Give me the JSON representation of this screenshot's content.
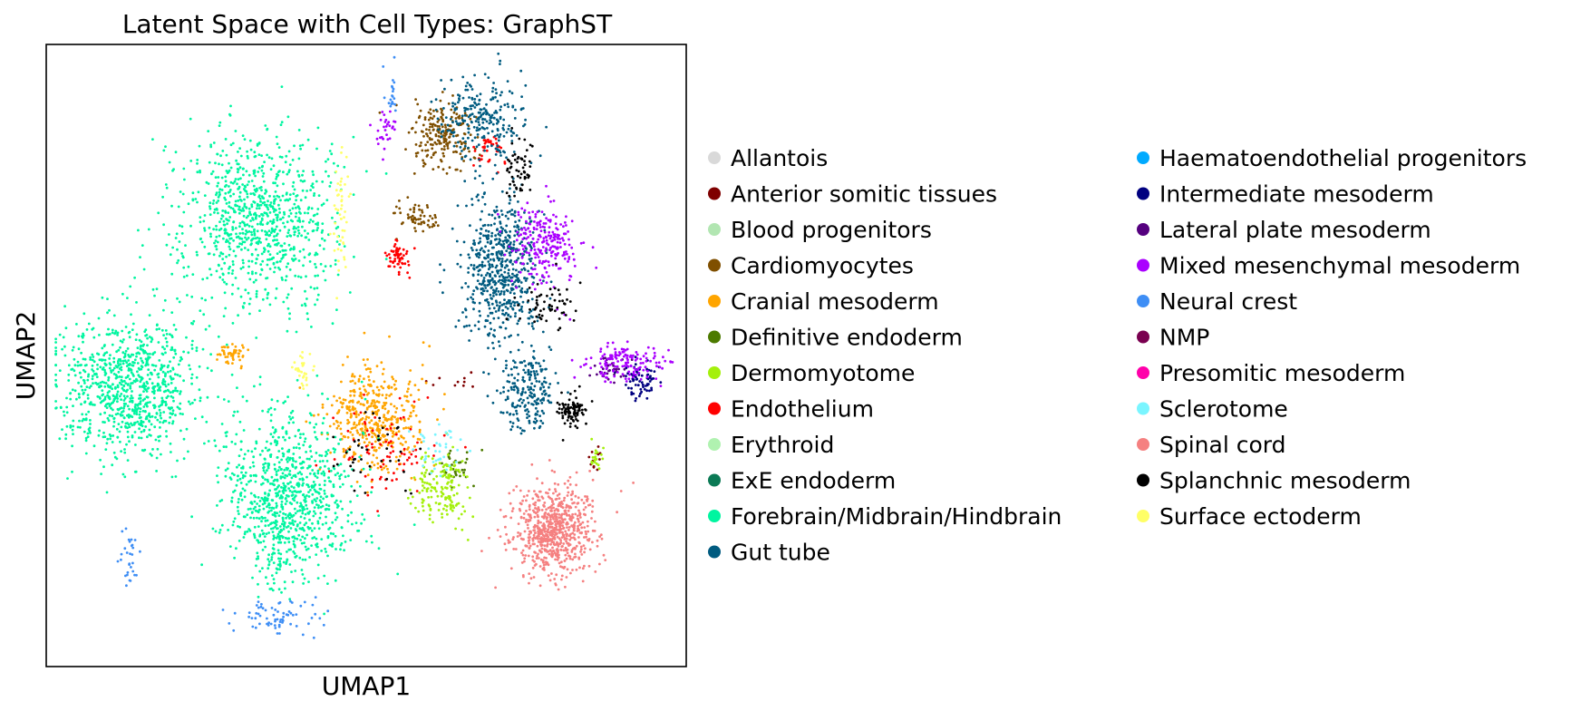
{
  "chart_data": {
    "type": "scatter",
    "title": "Latent Space with Cell Types: GraphST",
    "xlabel": "UMAP1",
    "ylabel": "UMAP2",
    "xlim": [
      0,
      10
    ],
    "ylim": [
      0,
      10
    ],
    "grid": false,
    "axis_ticks": false,
    "legend_position": "right-outside",
    "series": [
      {
        "name": "Allantois",
        "color": "#d9d9d9",
        "clusters": []
      },
      {
        "name": "Anterior somitic tissues",
        "color": "#7f0000",
        "clusters": [
          {
            "x": 8.6,
            "y": 3.3,
            "sx": 0.1,
            "sy": 0.3,
            "n": 12
          },
          {
            "x": 6.4,
            "y": 4.6,
            "sx": 0.4,
            "sy": 0.2,
            "n": 10
          }
        ]
      },
      {
        "name": "Blood progenitors",
        "color": "#b2e6b2",
        "clusters": []
      },
      {
        "name": "Cardiomyocytes",
        "color": "#7f4f00",
        "clusters": [
          {
            "x": 6.2,
            "y": 8.5,
            "sx": 0.45,
            "sy": 0.5,
            "n": 210
          },
          {
            "x": 5.8,
            "y": 7.2,
            "sx": 0.3,
            "sy": 0.2,
            "n": 60
          }
        ]
      },
      {
        "name": "Cranial mesoderm",
        "color": "#ffa500",
        "clusters": [
          {
            "x": 5.1,
            "y": 4.0,
            "sx": 0.65,
            "sy": 0.75,
            "n": 430
          },
          {
            "x": 2.9,
            "y": 5.0,
            "sx": 0.2,
            "sy": 0.15,
            "n": 50
          }
        ]
      },
      {
        "name": "Definitive endoderm",
        "color": "#4c7a00",
        "clusters": [
          {
            "x": 6.4,
            "y": 3.2,
            "sx": 0.3,
            "sy": 0.3,
            "n": 40
          }
        ]
      },
      {
        "name": "Dermomyotome",
        "color": "#a4f00c",
        "clusters": [
          {
            "x": 6.2,
            "y": 2.9,
            "sx": 0.35,
            "sy": 0.55,
            "n": 160
          },
          {
            "x": 8.6,
            "y": 3.4,
            "sx": 0.1,
            "sy": 0.2,
            "n": 20
          }
        ]
      },
      {
        "name": "Endothelium",
        "color": "#ff0000",
        "clusters": [
          {
            "x": 5.5,
            "y": 6.6,
            "sx": 0.15,
            "sy": 0.25,
            "n": 60
          },
          {
            "x": 6.9,
            "y": 8.3,
            "sx": 0.2,
            "sy": 0.3,
            "n": 40
          },
          {
            "x": 5.3,
            "y": 3.5,
            "sx": 0.8,
            "sy": 0.7,
            "n": 80
          }
        ]
      },
      {
        "name": "Erythroid",
        "color": "#b0f2b0",
        "clusters": []
      },
      {
        "name": "ExE endoderm",
        "color": "#0b7a55",
        "clusters": []
      },
      {
        "name": "Forebrain/Midbrain/Hindbrain",
        "color": "#00f5a0",
        "clusters": [
          {
            "x": 3.3,
            "y": 7.2,
            "sx": 1.1,
            "sy": 1.3,
            "n": 900
          },
          {
            "x": 1.3,
            "y": 4.5,
            "sx": 1.0,
            "sy": 1.0,
            "n": 900
          },
          {
            "x": 3.8,
            "y": 2.7,
            "sx": 0.9,
            "sy": 1.2,
            "n": 900
          }
        ]
      },
      {
        "name": "Gut tube",
        "color": "#005b80",
        "clusters": [
          {
            "x": 7.1,
            "y": 6.4,
            "sx": 0.55,
            "sy": 1.1,
            "n": 600
          },
          {
            "x": 6.8,
            "y": 8.8,
            "sx": 0.6,
            "sy": 0.6,
            "n": 250
          },
          {
            "x": 7.5,
            "y": 4.4,
            "sx": 0.4,
            "sy": 0.6,
            "n": 200
          }
        ]
      },
      {
        "name": "Haematoendothelial progenitors",
        "color": "#00aaff",
        "clusters": []
      },
      {
        "name": "Intermediate mesoderm",
        "color": "#000080",
        "clusters": [
          {
            "x": 9.3,
            "y": 4.6,
            "sx": 0.25,
            "sy": 0.25,
            "n": 70
          }
        ]
      },
      {
        "name": "Lateral plate mesoderm",
        "color": "#55007f",
        "clusters": [
          {
            "x": 8.8,
            "y": 4.8,
            "sx": 0.25,
            "sy": 0.2,
            "n": 40
          }
        ]
      },
      {
        "name": "Mixed mesenchymal mesoderm",
        "color": "#aa00ff",
        "clusters": [
          {
            "x": 7.8,
            "y": 6.8,
            "sx": 0.5,
            "sy": 0.6,
            "n": 230
          },
          {
            "x": 9.0,
            "y": 4.9,
            "sx": 0.6,
            "sy": 0.3,
            "n": 140
          },
          {
            "x": 5.3,
            "y": 8.6,
            "sx": 0.15,
            "sy": 0.3,
            "n": 30
          }
        ]
      },
      {
        "name": "Neural crest",
        "color": "#3e8ef5",
        "clusters": [
          {
            "x": 3.6,
            "y": 0.8,
            "sx": 0.6,
            "sy": 0.25,
            "n": 70
          },
          {
            "x": 1.3,
            "y": 1.8,
            "sx": 0.15,
            "sy": 0.5,
            "n": 30
          },
          {
            "x": 5.4,
            "y": 9.2,
            "sx": 0.08,
            "sy": 0.3,
            "n": 20
          }
        ]
      },
      {
        "name": "NMP",
        "color": "#7a0050",
        "clusters": []
      },
      {
        "name": "Presomitic mesoderm",
        "color": "#ff00aa",
        "clusters": []
      },
      {
        "name": "Sclerotome",
        "color": "#7af5ff",
        "clusters": [
          {
            "x": 6.1,
            "y": 3.5,
            "sx": 0.35,
            "sy": 0.4,
            "n": 40
          }
        ]
      },
      {
        "name": "Spinal cord",
        "color": "#f58080",
        "clusters": [
          {
            "x": 7.9,
            "y": 2.2,
            "sx": 0.6,
            "sy": 0.65,
            "n": 700
          }
        ]
      },
      {
        "name": "Splanchnic mesoderm",
        "color": "#000000",
        "clusters": [
          {
            "x": 8.2,
            "y": 4.1,
            "sx": 0.2,
            "sy": 0.25,
            "n": 90
          },
          {
            "x": 7.4,
            "y": 8.0,
            "sx": 0.2,
            "sy": 0.4,
            "n": 60
          },
          {
            "x": 7.8,
            "y": 5.8,
            "sx": 0.4,
            "sy": 0.4,
            "n": 60
          },
          {
            "x": 5.0,
            "y": 3.4,
            "sx": 0.6,
            "sy": 0.5,
            "n": 40
          }
        ]
      },
      {
        "name": "Surface ectoderm",
        "color": "#ffff66",
        "clusters": [
          {
            "x": 4.6,
            "y": 7.3,
            "sx": 0.1,
            "sy": 0.9,
            "n": 50
          },
          {
            "x": 4.0,
            "y": 4.8,
            "sx": 0.2,
            "sy": 0.3,
            "n": 30
          }
        ]
      }
    ]
  }
}
